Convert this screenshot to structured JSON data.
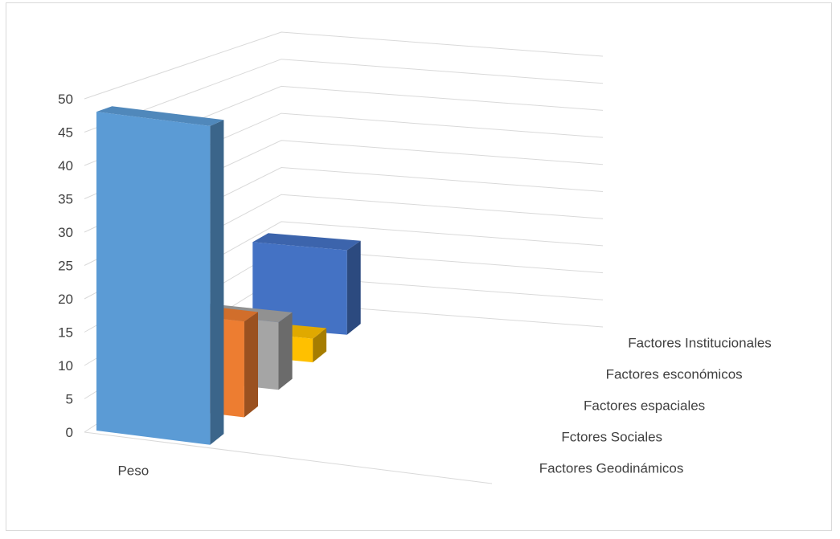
{
  "chart_data": {
    "type": "bar",
    "variant": "3d-column",
    "title": "",
    "xlabel": "",
    "ylabel": "",
    "ylim": [
      0,
      50
    ],
    "yticks": [
      "0",
      "5",
      "10",
      "15",
      "20",
      "25",
      "30",
      "35",
      "40",
      "45",
      "50"
    ],
    "grid": true,
    "categories": [
      "Peso"
    ],
    "series": [
      {
        "name": "Factores Geodinámicos",
        "values": [
          48
        ],
        "color": "#5B9BD5"
      },
      {
        "name": "Fctores Sociales",
        "values": [
          15
        ],
        "color": "#ED7D31"
      },
      {
        "name": "Factores espaciales",
        "values": [
          11
        ],
        "color": "#A5A5A5"
      },
      {
        "name": "Factores esconómicos",
        "values": [
          4
        ],
        "color": "#FFC000"
      },
      {
        "name": "Factores Institucionales",
        "values": [
          15
        ],
        "color": "#4472C4"
      }
    ]
  }
}
